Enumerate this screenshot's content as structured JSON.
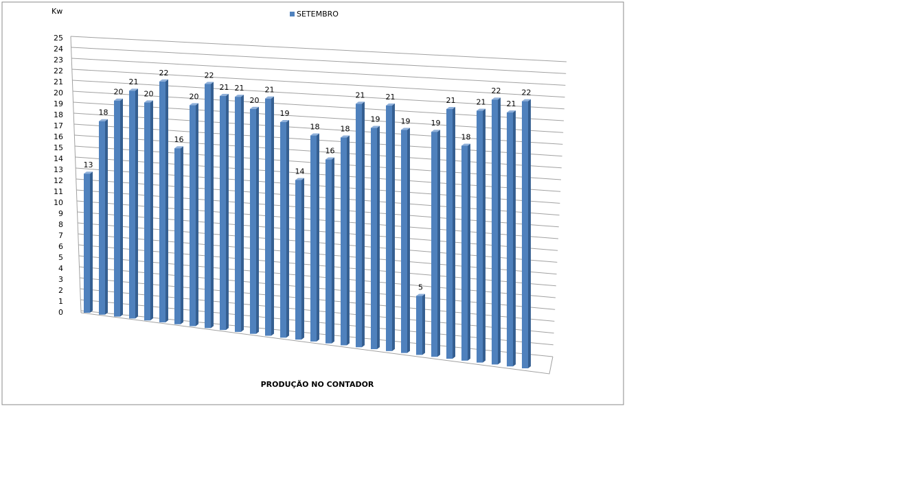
{
  "chart_data": {
    "type": "bar3d",
    "y_label": "Kw",
    "x_label": "PRODUÇÃO NO CONTADOR",
    "series": [
      {
        "name": "SETEMBRO",
        "color": "#4f81bd",
        "values": [
          13,
          18,
          20,
          21,
          20,
          22,
          16,
          20,
          22,
          21,
          21,
          20,
          21,
          19,
          14,
          18,
          16,
          18,
          21,
          19,
          21,
          19,
          5,
          19,
          21,
          18,
          21,
          22,
          21,
          22
        ]
      }
    ],
    "ylim": [
      0,
      25
    ],
    "yticks": [
      0,
      1,
      2,
      3,
      4,
      5,
      6,
      7,
      8,
      9,
      10,
      11,
      12,
      13,
      14,
      15,
      16,
      17,
      18,
      19,
      20,
      21,
      22,
      23,
      24,
      25
    ],
    "grid": true,
    "legend": "top"
  }
}
